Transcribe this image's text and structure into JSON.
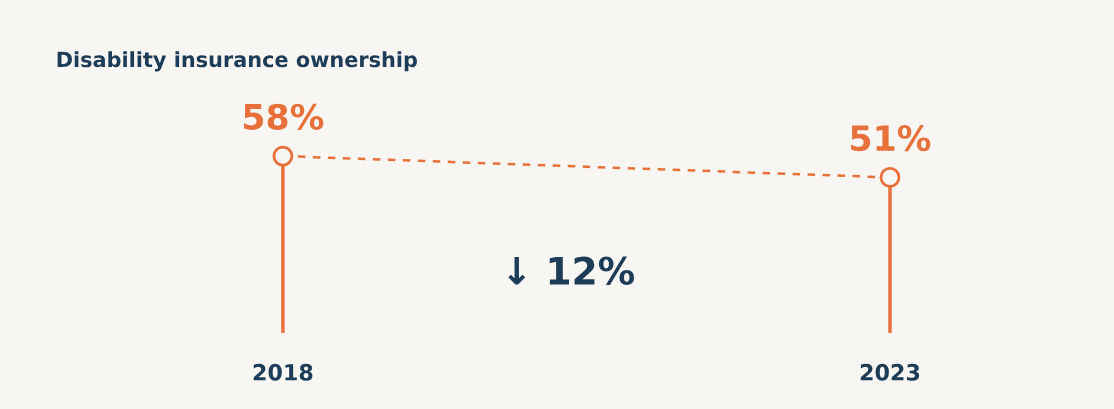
{
  "chart_data": {
    "type": "lollipop",
    "title": "Disability insurance ownership",
    "categories": [
      "2018",
      "2023"
    ],
    "values": [
      58,
      51
    ],
    "color": "#e8703a",
    "value_labels": [
      "58%",
      "51%"
    ],
    "marker": "circle",
    "line_style": "dashed",
    "annotations": [
      "↓ 12%"
    ]
  }
}
